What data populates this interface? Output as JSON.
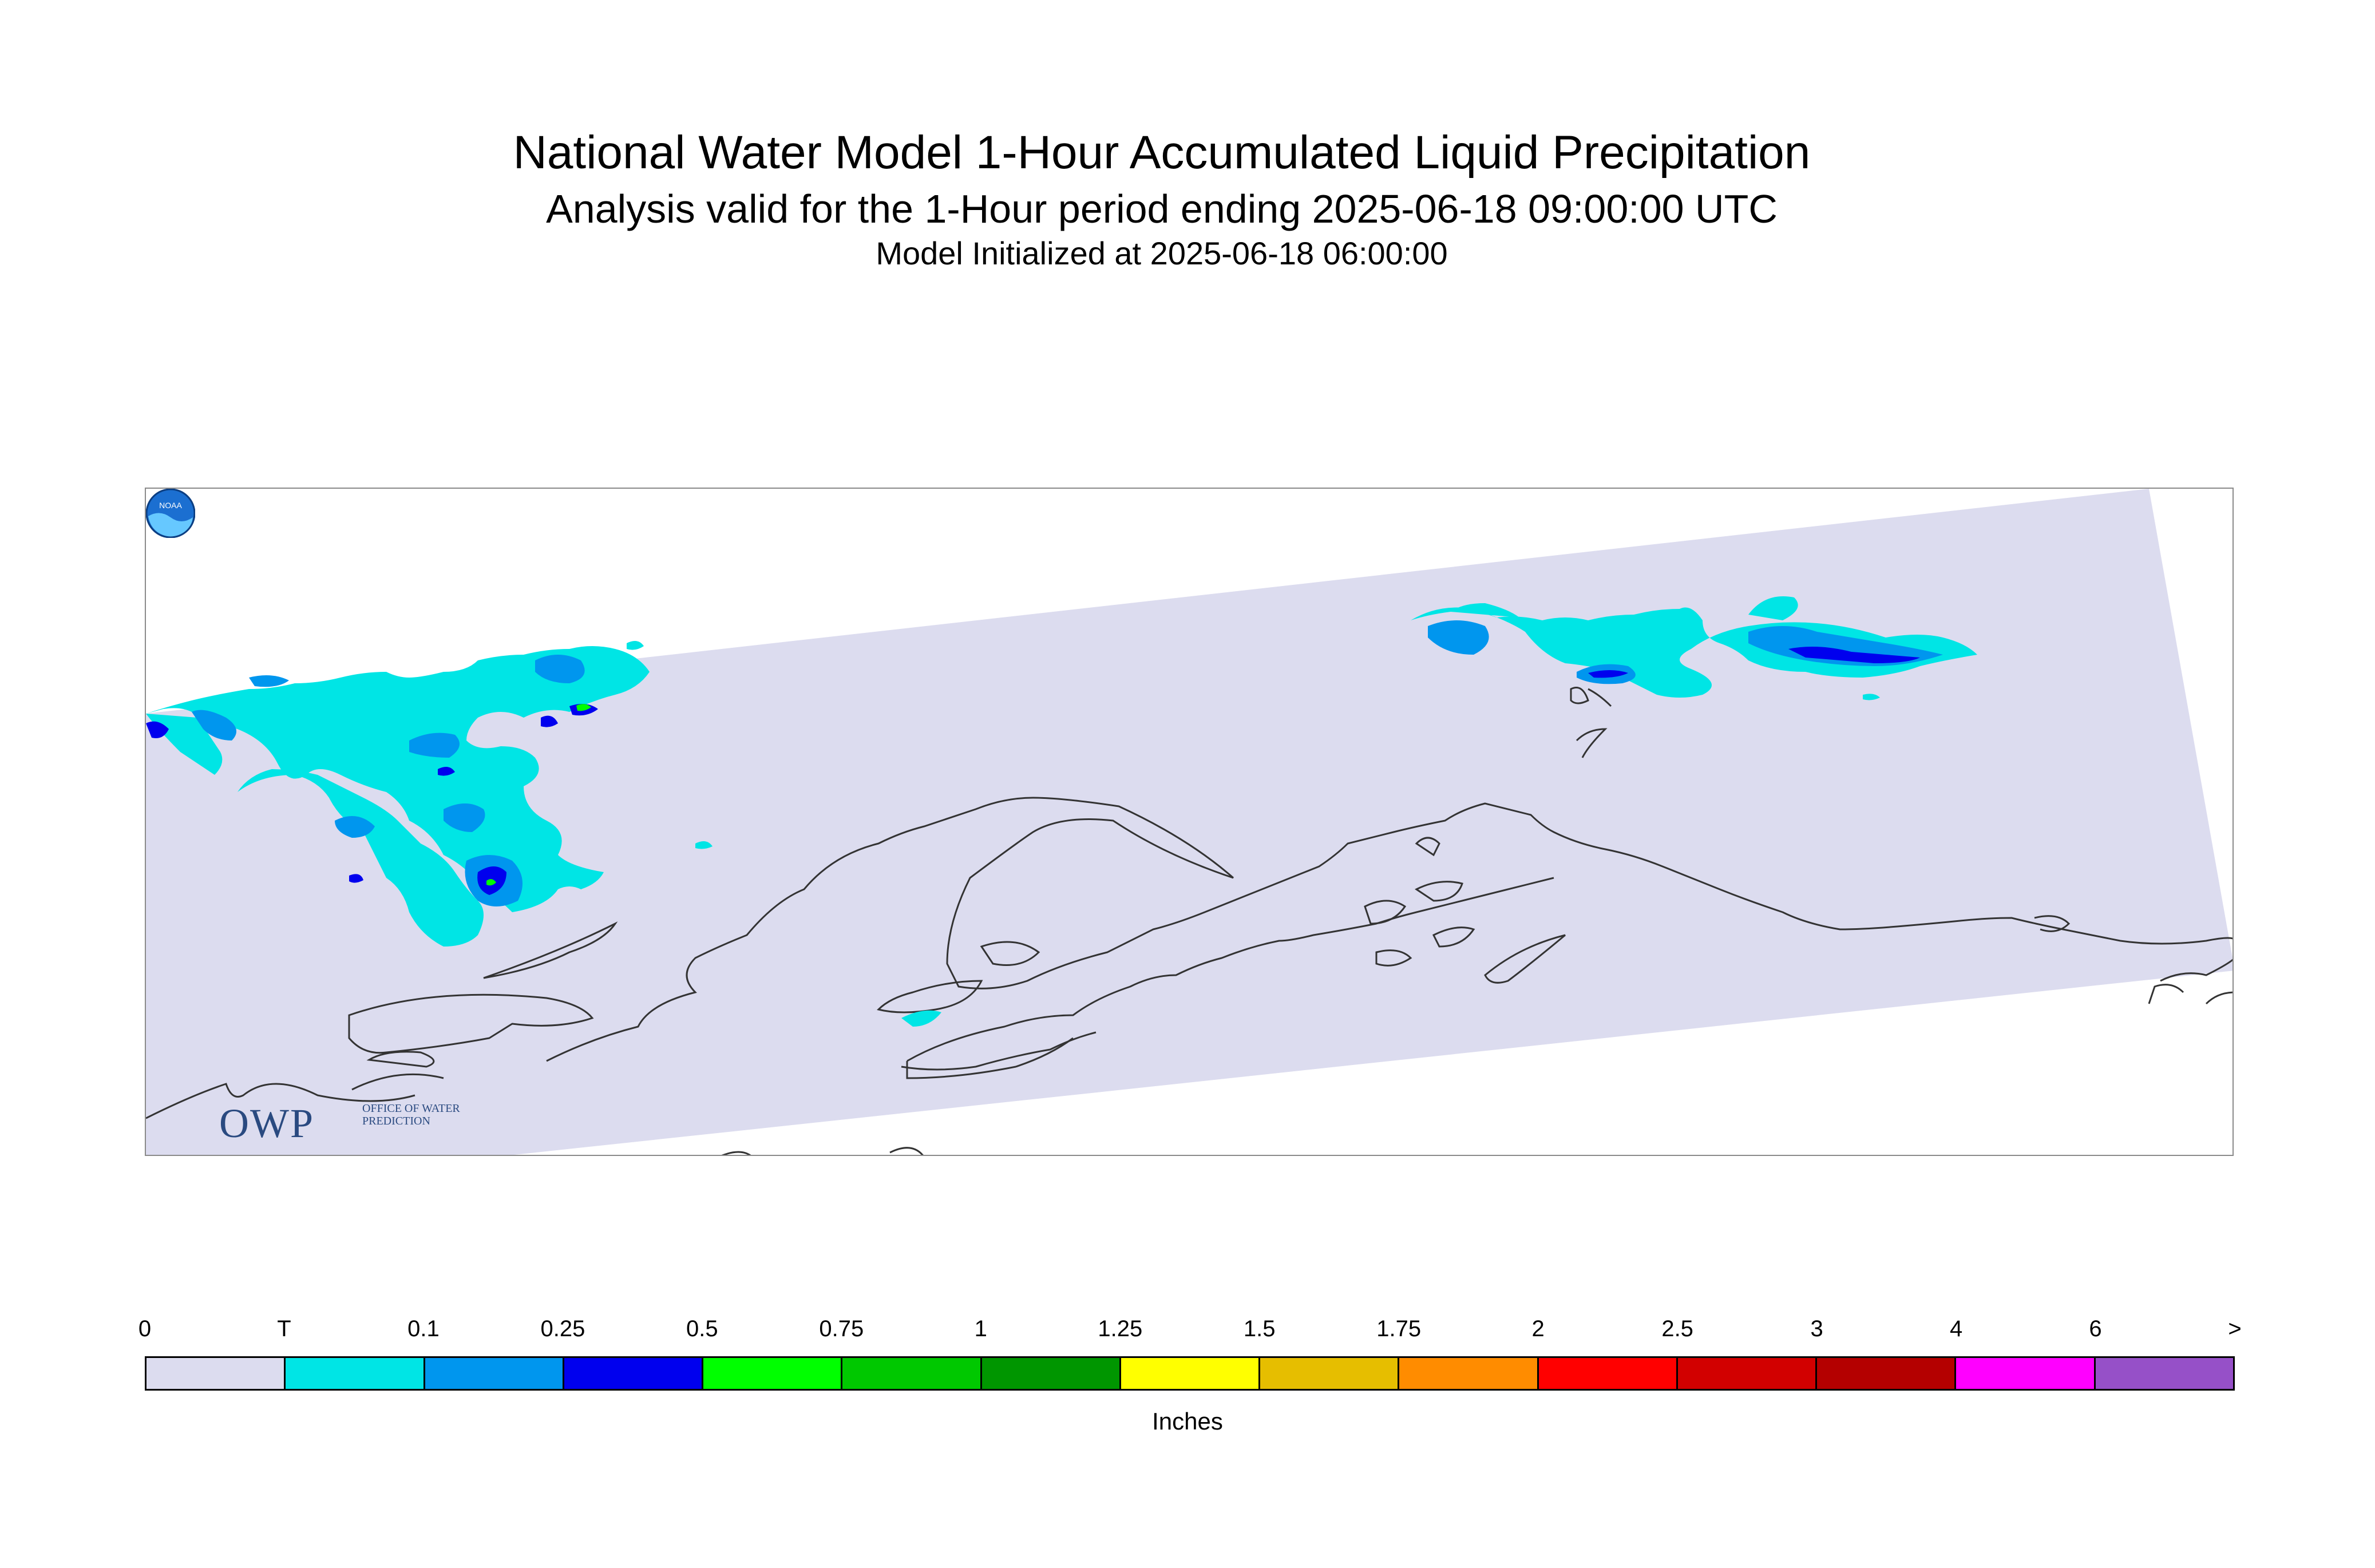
{
  "header": {
    "title": "National Water Model 1-Hour Accumulated Liquid Precipitation",
    "subtitle": "Analysis valid for the 1-Hour period ending 2025-06-18 09:00:00 UTC",
    "init_line": "Model Initialized at 2025-06-18 06:00:00"
  },
  "logos": {
    "owp_mark": "OWP",
    "owp_text": "OFFICE OF WATER PREDICTION",
    "noaa_text": "NOAA"
  },
  "map": {
    "domain_fill": "#dcdcef",
    "coastline_color": "#333333",
    "precip_levels": {
      "trace": "#00e5e5",
      "light": "#0096ee",
      "moderate": "#0000ee",
      "heavy": "#00ff00"
    }
  },
  "colorbar": {
    "unit_label": "Inches",
    "tick_labels": [
      "0",
      "T",
      "0.1",
      "0.25",
      "0.5",
      "0.75",
      "1",
      "1.25",
      "1.5",
      "1.75",
      "2",
      "2.5",
      "3",
      "4",
      "6",
      ">"
    ],
    "colors": [
      "#dcdcef",
      "#00e5e5",
      "#0096ee",
      "#0000ee",
      "#00ff00",
      "#00c800",
      "#009600",
      "#ffff00",
      "#e6be00",
      "#ff8c00",
      "#ff0000",
      "#d20000",
      "#b40000",
      "#ff00ff",
      "#9650c8"
    ]
  }
}
